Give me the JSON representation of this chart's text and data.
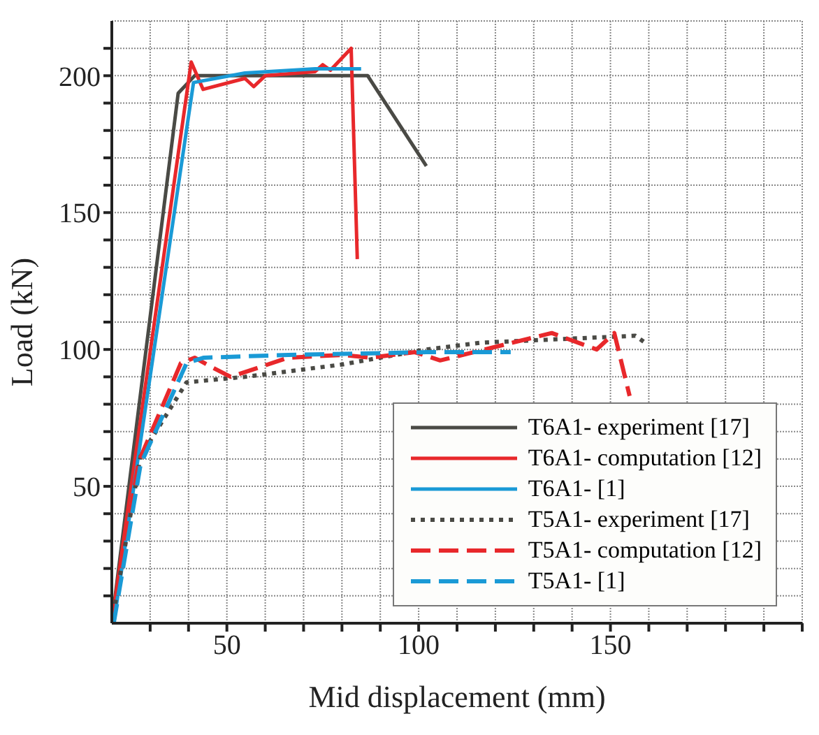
{
  "chart_data": {
    "type": "line",
    "xlabel": "Mid displacement (mm)",
    "ylabel": "Load (kN)",
    "xlim": [
      20,
      200
    ],
    "ylim": [
      0,
      220
    ],
    "xticks": [
      {
        "value": 30,
        "label": null
      },
      {
        "value": 40,
        "label": null
      },
      50,
      {
        "value": 60,
        "label": null
      },
      {
        "value": 70,
        "label": null
      },
      {
        "value": 80,
        "label": null
      },
      {
        "value": 90,
        "label": null
      },
      100,
      {
        "value": 110,
        "label": null
      },
      {
        "value": 120,
        "label": null
      },
      {
        "value": 130,
        "label": null
      },
      {
        "value": 140,
        "label": null
      },
      150,
      {
        "value": 160,
        "label": null
      },
      {
        "value": 170,
        "label": null
      },
      {
        "value": 180,
        "label": null
      },
      {
        "value": 190,
        "label": null
      },
      {
        "value": 200,
        "label": null
      }
    ],
    "yticks": [
      {
        "value": 10,
        "label": null
      },
      {
        "value": 20,
        "label": null
      },
      {
        "value": 30,
        "label": null
      },
      {
        "value": 40,
        "label": null
      },
      50,
      {
        "value": 60,
        "label": null
      },
      {
        "value": 70,
        "label": null
      },
      {
        "value": 80,
        "label": null
      },
      {
        "value": 90,
        "label": null
      },
      100,
      {
        "value": 110,
        "label": null
      },
      {
        "value": 120,
        "label": null
      },
      {
        "value": 130,
        "label": null
      },
      {
        "value": 140,
        "label": null
      },
      150,
      {
        "value": 160,
        "label": null
      },
      {
        "value": 170,
        "label": null
      },
      {
        "value": 180,
        "label": null
      },
      {
        "value": 190,
        "label": null
      },
      200,
      {
        "value": 210,
        "label": null
      }
    ],
    "grid": true,
    "legend": "bottom right",
    "marker": "none",
    "series": [
      {
        "name": "T6A1- experiment [17]",
        "color": "#4a4a45",
        "line_style": "solid",
        "x": [
          20,
          37.3,
          41.6,
          86.7,
          102
        ],
        "values": [
          0,
          193.6,
          200,
          200,
          167
        ]
      },
      {
        "name": "T6A1- computation [12]",
        "color": "#e8282b",
        "line_style": "solid",
        "x": [
          20,
          40.7,
          43.8,
          54.7,
          57,
          60,
          73,
          75,
          77,
          82.4,
          84
        ],
        "values": [
          0,
          205,
          195,
          199,
          196,
          200,
          201.5,
          204,
          202,
          210,
          133
        ]
      },
      {
        "name": "T6A1- [1]",
        "color": "#1a9ad6",
        "line_style": "solid",
        "x": [
          20.5,
          41.3,
          54.7,
          73,
          85
        ],
        "values": [
          0,
          197.5,
          201,
          202.5,
          202.5
        ]
      },
      {
        "name": "T5A1- experiment [17]",
        "color": "#4a4a45",
        "line_style": "dotted",
        "x": [
          20,
          27.5,
          39.5,
          54.7,
          80,
          102,
          116.5,
          156.5,
          159.5
        ],
        "values": [
          0,
          61,
          88,
          90,
          94.5,
          100,
          102.5,
          105,
          102
        ]
      },
      {
        "name": "T5A1- computation [12]",
        "color": "#e8282b",
        "line_style": "dashed",
        "x": [
          20,
          27,
          38,
          41.6,
          46,
          51,
          66,
          80,
          87.5,
          99,
          105.6,
          134.7,
          146.4,
          151,
          155
        ],
        "values": [
          0,
          59,
          95,
          97,
          93.6,
          90,
          97,
          98,
          97,
          99,
          96,
          106,
          100,
          106,
          83
        ]
      },
      {
        "name": "T5A1- [1]",
        "color": "#1a9ad6",
        "line_style": "dashed",
        "x": [
          20.5,
          27.5,
          39.5,
          44,
          66,
          102,
          124
        ],
        "values": [
          0,
          58,
          95,
          97,
          98,
          99,
          99
        ]
      }
    ]
  }
}
